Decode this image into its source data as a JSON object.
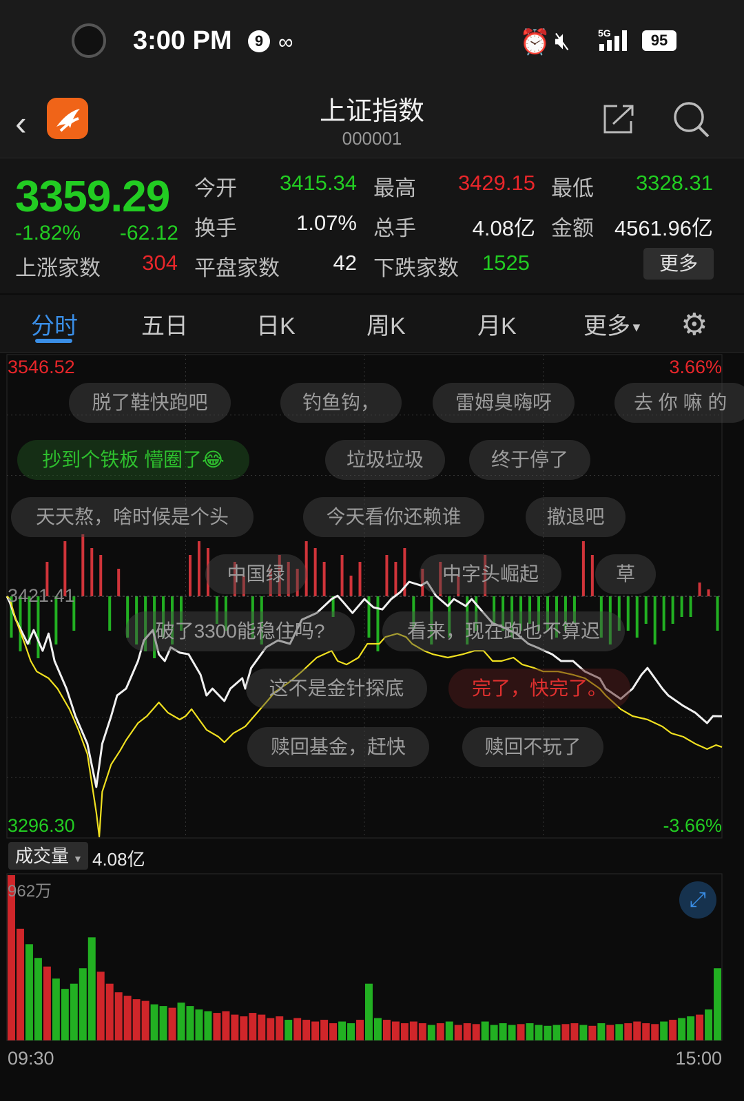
{
  "status_bar": {
    "time": "3:00 PM",
    "notif_count": "9",
    "network": "5G",
    "battery": "95"
  },
  "header": {
    "title": "上证指数",
    "code": "000001"
  },
  "quote": {
    "price": "3359.29",
    "change_pct": "-1.82%",
    "change": "-62.12",
    "open_label": "今开",
    "open": "3415.34",
    "high_label": "最高",
    "high": "3429.15",
    "low_label": "最低",
    "low": "3328.31",
    "turnover_label": "换手",
    "turnover": "1.07%",
    "volume_label": "总手",
    "volume": "4.08亿",
    "amount_label": "金额",
    "amount": "4561.96亿",
    "up_label": "上涨家数",
    "up": "304",
    "flat_label": "平盘家数",
    "flat": "42",
    "down_label": "下跌家数",
    "down": "1525",
    "more": "更多"
  },
  "tabs": [
    {
      "label": "分时",
      "active": true
    },
    {
      "label": "五日"
    },
    {
      "label": "日K"
    },
    {
      "label": "周K"
    },
    {
      "label": "月K"
    },
    {
      "label": "更多"
    }
  ],
  "chart_labels": {
    "top_price": "3546.52",
    "top_pct": "3.66%",
    "prev_close": "3421.41",
    "bottom_price": "3296.30",
    "bottom_pct": "-3.66%"
  },
  "volume_panel": {
    "selector": "成交量",
    "total": "4.08亿",
    "max": "962万",
    "start_time": "09:30",
    "end_time": "15:00"
  },
  "comments": [
    {
      "text": "脱了鞋快跑吧"
    },
    {
      "text": "钓鱼钩，"
    },
    {
      "text": "雷姆臭嗨呀"
    },
    {
      "text": "去 你 嘛 的"
    },
    {
      "text": "抄到个铁板 懵圈了😂"
    },
    {
      "text": "垃圾垃圾"
    },
    {
      "text": "终于停了"
    },
    {
      "text": "天天熬，啥时候是个头"
    },
    {
      "text": "今天看你还赖谁"
    },
    {
      "text": "撤退吧"
    },
    {
      "text": "中国绿"
    },
    {
      "text": "中字头崛起"
    },
    {
      "text": "草"
    },
    {
      "text": "破了3300能稳住吗?"
    },
    {
      "text": "看来，现在跑也不算迟"
    },
    {
      "text": "这不是金针探底"
    },
    {
      "text": "完了，快完了。"
    },
    {
      "text": "赎回基金，赶快"
    },
    {
      "text": "赎回不玩了"
    }
  ],
  "colors": {
    "up": "#e8262a",
    "down": "#22cc22",
    "price_line": "#f0f0f0",
    "avg_line": "#f0e020",
    "accent": "#3a8ee6"
  },
  "chart_data": {
    "type": "line",
    "ylim": [
      3296.3,
      3546.52
    ],
    "prev_close": 3421.41,
    "xlim": [
      "09:30",
      "15:00"
    ],
    "series": [
      {
        "role": "price",
        "points": [
          [
            "09:30",
            3421.4
          ],
          [
            "09:31",
            3418.2
          ],
          [
            "09:33",
            3409.3
          ],
          [
            "09:37",
            3396.8
          ],
          [
            "09:39",
            3403.9
          ],
          [
            "09:42",
            3393.2
          ],
          [
            "09:44",
            3402.1
          ],
          [
            "09:46",
            3387.9
          ],
          [
            "09:50",
            3373.6
          ],
          [
            "09:53",
            3359.4
          ],
          [
            "09:57",
            3345.1
          ],
          [
            "10:00",
            3322.7
          ],
          [
            "10:02",
            3345.1
          ],
          [
            "10:05",
            3359.4
          ],
          [
            "10:07",
            3370.1
          ],
          [
            "10:10",
            3373.6
          ],
          [
            "10:14",
            3387.9
          ],
          [
            "10:16",
            3398.6
          ],
          [
            "10:19",
            3403.9
          ],
          [
            "10:21",
            3391.4
          ],
          [
            "10:23",
            3387.9
          ],
          [
            "10:25",
            3395.0
          ],
          [
            "10:28",
            3392.2
          ],
          [
            "10:31",
            3391.4
          ],
          [
            "10:35",
            3380.8
          ],
          [
            "10:37",
            3370.1
          ],
          [
            "10:39",
            3373.6
          ],
          [
            "10:43",
            3367.2
          ],
          [
            "10:45",
            3373.6
          ],
          [
            "10:49",
            3379.0
          ],
          [
            "10:50",
            3373.6
          ],
          [
            "10:52",
            3384.3
          ],
          [
            "10:57",
            3395.0
          ],
          [
            "11:01",
            3398.6
          ],
          [
            "11:05",
            3396.8
          ],
          [
            "11:09",
            3409.3
          ],
          [
            "11:14",
            3412.8
          ],
          [
            "11:19",
            3420.0
          ],
          [
            "11:21",
            3421.7
          ],
          [
            "11:23",
            3418.2
          ],
          [
            "11:26",
            3412.8
          ],
          [
            "11:30",
            3420.0
          ],
          [
            "13:03",
            3415.7
          ],
          [
            "13:06",
            3414.6
          ],
          [
            "13:09",
            3420.0
          ],
          [
            "13:12",
            3423.5
          ],
          [
            "13:15",
            3428.9
          ],
          [
            "13:19",
            3427.0
          ],
          [
            "13:21",
            3428.9
          ],
          [
            "13:24",
            3421.7
          ],
          [
            "13:28",
            3416.4
          ],
          [
            "13:30",
            3420.0
          ],
          [
            "13:34",
            3416.4
          ],
          [
            "13:36",
            3420.0
          ],
          [
            "13:40",
            3412.8
          ],
          [
            "13:43",
            3407.5
          ],
          [
            "13:46",
            3405.7
          ],
          [
            "13:51",
            3402.1
          ],
          [
            "13:55",
            3396.8
          ],
          [
            "13:58",
            3394.9
          ],
          [
            "14:03",
            3391.4
          ],
          [
            "14:06",
            3387.9
          ],
          [
            "14:10",
            3387.9
          ],
          [
            "14:14",
            3382.5
          ],
          [
            "14:19",
            3378.9
          ],
          [
            "14:21",
            3373.6
          ],
          [
            "14:26",
            3368.3
          ],
          [
            "14:30",
            3373.6
          ],
          [
            "14:33",
            3380.8
          ],
          [
            "14:35",
            3384.3
          ],
          [
            "14:40",
            3373.6
          ],
          [
            "14:42",
            3370.1
          ],
          [
            "14:47",
            3364.7
          ],
          [
            "14:51",
            3361.2
          ],
          [
            "14:55",
            3355.8
          ],
          [
            "14:57",
            3359.4
          ],
          [
            "15:00",
            3359.3
          ]
        ]
      },
      {
        "role": "average",
        "points": [
          [
            "09:30",
            3421.4
          ],
          [
            "09:31",
            3420.0
          ],
          [
            "09:33",
            3409.3
          ],
          [
            "09:36",
            3396.8
          ],
          [
            "09:38",
            3387.9
          ],
          [
            "09:40",
            3382.5
          ],
          [
            "09:44",
            3379.0
          ],
          [
            "09:47",
            3373.6
          ],
          [
            "09:51",
            3363.0
          ],
          [
            "09:54",
            3352.3
          ],
          [
            "09:57",
            3339.8
          ],
          [
            "10:00",
            3309.5
          ],
          [
            "10:01",
            3297.0
          ],
          [
            "10:02",
            3320.2
          ],
          [
            "10:05",
            3334.4
          ],
          [
            "10:08",
            3341.5
          ],
          [
            "10:10",
            3346.9
          ],
          [
            "10:14",
            3355.8
          ],
          [
            "10:17",
            3359.4
          ],
          [
            "10:21",
            3366.5
          ],
          [
            "10:24",
            3361.2
          ],
          [
            "10:28",
            3357.6
          ],
          [
            "10:30",
            3359.4
          ],
          [
            "10:32",
            3363.0
          ],
          [
            "10:37",
            3352.3
          ],
          [
            "10:41",
            3348.7
          ],
          [
            "10:43",
            3345.8
          ],
          [
            "10:46",
            3350.5
          ],
          [
            "10:50",
            3354.0
          ],
          [
            "10:53",
            3359.4
          ],
          [
            "10:57",
            3366.5
          ],
          [
            "11:00",
            3371.9
          ],
          [
            "11:05",
            3377.2
          ],
          [
            "11:09",
            3382.5
          ],
          [
            "11:14",
            3389.7
          ],
          [
            "11:19",
            3393.2
          ],
          [
            "11:21",
            3387.9
          ],
          [
            "11:24",
            3386.1
          ],
          [
            "11:28",
            3389.7
          ],
          [
            "13:01",
            3396.8
          ],
          [
            "13:05",
            3396.8
          ],
          [
            "13:07",
            3400.3
          ],
          [
            "13:11",
            3402.1
          ],
          [
            "13:14",
            3400.3
          ],
          [
            "13:16",
            3396.8
          ],
          [
            "13:20",
            3393.2
          ],
          [
            "13:23",
            3391.4
          ],
          [
            "13:28",
            3389.7
          ],
          [
            "13:33",
            3391.4
          ],
          [
            "13:37",
            3393.2
          ],
          [
            "13:40",
            3393.2
          ],
          [
            "13:43",
            3387.9
          ],
          [
            "13:46",
            3387.9
          ],
          [
            "13:50",
            3389.7
          ],
          [
            "13:53",
            3386.1
          ],
          [
            "13:57",
            3384.3
          ],
          [
            "14:00",
            3382.5
          ],
          [
            "14:05",
            3382.5
          ],
          [
            "14:10",
            3380.8
          ],
          [
            "14:14",
            3379.0
          ],
          [
            "14:19",
            3373.6
          ],
          [
            "14:21",
            3370.1
          ],
          [
            "14:26",
            3363.0
          ],
          [
            "14:30",
            3359.4
          ],
          [
            "14:35",
            3357.6
          ],
          [
            "14:40",
            3354.0
          ],
          [
            "14:43",
            3350.5
          ],
          [
            "14:47",
            3348.7
          ],
          [
            "14:51",
            3345.1
          ],
          [
            "14:55",
            3342.3
          ],
          [
            "14:58",
            3344.4
          ],
          [
            "15:00",
            3343.4
          ]
        ]
      }
    ],
    "breadth_bars": [
      -0.6,
      -0.8,
      -0.7,
      -0.9,
      0.5,
      -0.7,
      0.8,
      -0.5,
      0.9,
      0.7,
      0.6,
      -0.5,
      0.4,
      -0.6,
      -0.7,
      -0.8,
      -0.9,
      -0.6,
      -0.7,
      -0.5,
      0.6,
      0.8,
      0.7,
      -0.4,
      -0.5,
      0.5,
      0.3,
      -0.6,
      -0.7,
      0.4,
      0.6,
      0.5,
      0.4,
      0.8,
      0.7,
      0.5,
      -0.3,
      0.6,
      0.3,
      0.5,
      -0.6,
      -0.8,
      0.6,
      0.5,
      0.7,
      -0.5,
      0.4,
      -0.7,
      0.5,
      -0.6,
      0.3,
      -0.7,
      -0.5,
      0.6,
      -0.4,
      -0.5,
      -0.6,
      -0.5,
      -0.4,
      -0.5,
      -0.5,
      -0.6,
      -0.5,
      -0.4,
      0.8,
      0.6,
      -0.6,
      -0.7,
      -0.5,
      -0.5,
      -0.6,
      -0.4,
      -0.7,
      -0.5,
      -0.4,
      -0.3,
      -0.3,
      0.2,
      0.1,
      -0.5
    ],
    "volume_wan": [
      962,
      650,
      560,
      480,
      430,
      360,
      300,
      330,
      420,
      600,
      400,
      330,
      280,
      260,
      240,
      230,
      210,
      200,
      190,
      220,
      200,
      180,
      170,
      160,
      170,
      150,
      140,
      160,
      150,
      130,
      140,
      120,
      130,
      120,
      110,
      120,
      100,
      110,
      100,
      120,
      330,
      130,
      120,
      110,
      100,
      110,
      100,
      90,
      100,
      110,
      90,
      100,
      95,
      110,
      90,
      100,
      90,
      95,
      100,
      90,
      85,
      90,
      95,
      100,
      90,
      85,
      100,
      90,
      95,
      100,
      110,
      100,
      95,
      110,
      120,
      130,
      140,
      150,
      180,
      420
    ],
    "volume_ymax": 962
  }
}
